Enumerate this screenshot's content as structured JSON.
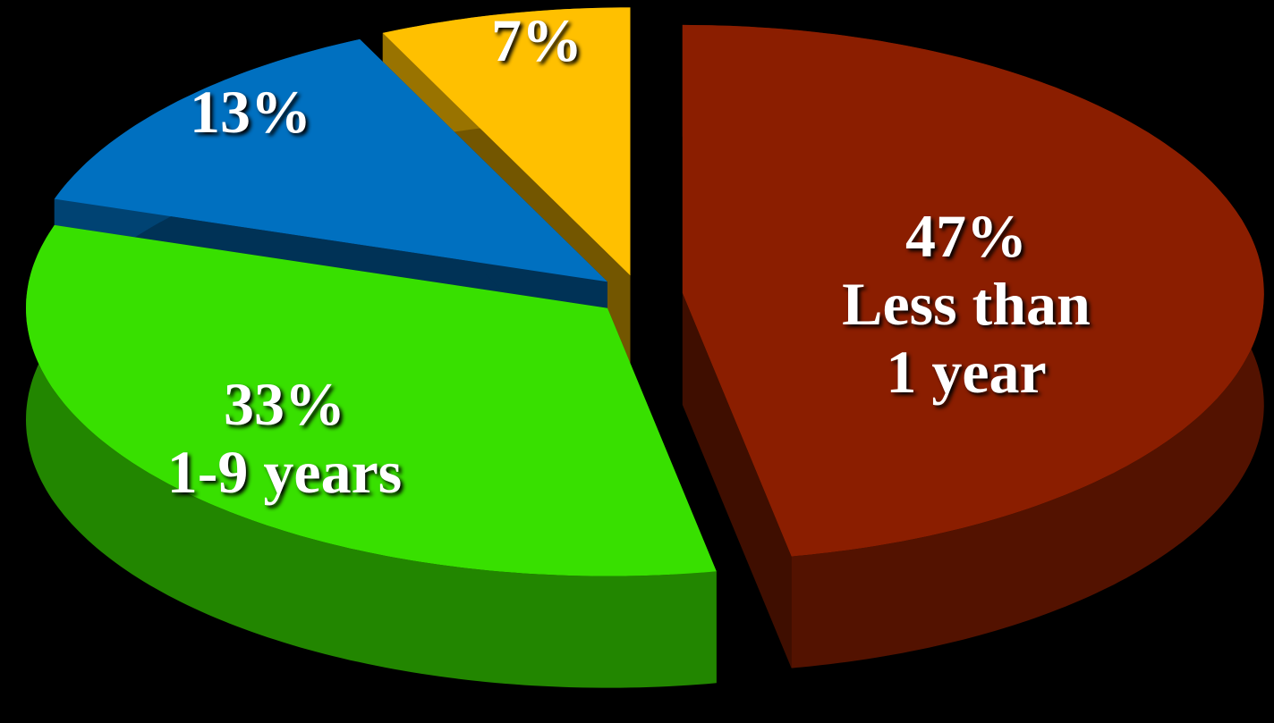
{
  "chart_data": {
    "type": "pie",
    "categories": [
      "Less than 1 year",
      "1-9 years",
      null,
      null
    ],
    "values": [
      47,
      33,
      13,
      7
    ],
    "value_labels": [
      "47%",
      "33%",
      "13%",
      "7%"
    ],
    "colors": [
      "#8b1e00",
      "#38e000",
      "#0070c0",
      "#ffc000"
    ]
  }
}
